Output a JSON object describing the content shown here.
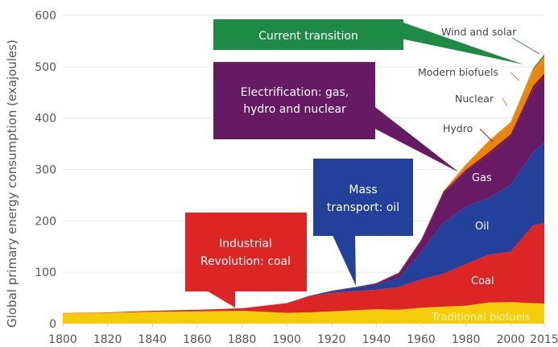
{
  "chart_data": {
    "type": "area",
    "stacked": true,
    "title": "",
    "xlabel": "",
    "ylabel": "Global primary energy consumption (exajoules)",
    "xlim": [
      1800,
      2015
    ],
    "ylim": [
      0,
      600
    ],
    "grid": true,
    "x_ticks": [
      "1800",
      "1820",
      "1840",
      "1860",
      "1880",
      "1900",
      "1920",
      "1940",
      "1960",
      "1980",
      "2000",
      "2015"
    ],
    "y_ticks": [
      "0",
      "100",
      "200",
      "300",
      "400",
      "500",
      "600"
    ],
    "x": [
      1800,
      1820,
      1840,
      1860,
      1880,
      1900,
      1910,
      1920,
      1930,
      1940,
      1950,
      1960,
      1970,
      1980,
      1990,
      2000,
      2010,
      2015
    ],
    "series": [
      {
        "name": "Traditional biofuels",
        "color": "#f5cc0a",
        "values": [
          20,
          21,
          23,
          24,
          25,
          21,
          22,
          24,
          26,
          28,
          27,
          31,
          33,
          35,
          41,
          42,
          40,
          39
        ]
      },
      {
        "name": "Coal",
        "color": "#dc2626",
        "values": [
          0.5,
          1,
          2,
          3,
          5,
          19,
          31,
          36,
          37,
          38,
          44,
          55,
          64,
          81,
          93,
          98,
          151,
          157
        ]
      },
      {
        "name": "Oil",
        "color": "#23409a",
        "values": [
          0,
          0,
          0,
          0,
          0,
          0,
          1,
          3,
          7,
          10,
          18,
          53,
          99,
          112,
          110,
          130,
          142,
          157
        ]
      },
      {
        "name": "Gas",
        "color": "#681a64",
        "values": [
          0,
          0,
          0,
          0,
          0,
          0,
          0,
          1,
          1,
          2,
          8,
          21,
          58,
          69,
          84,
          94,
          123,
          124
        ]
      },
      {
        "name": "Hydro",
        "color": "#8b1a1a",
        "values": [
          0,
          0,
          0,
          0,
          0,
          0,
          0,
          0,
          0,
          1,
          2,
          3,
          3,
          3,
          5,
          5,
          7,
          10
        ]
      },
      {
        "name": "Nuclear",
        "color": "#e8860f",
        "values": [
          0,
          0,
          0,
          0,
          0,
          0,
          0,
          0,
          0,
          0,
          0,
          0,
          1,
          10,
          20,
          21,
          27,
          25
        ]
      },
      {
        "name": "Modern biofuels",
        "color": "#e8860f",
        "values": [
          0,
          0,
          0,
          0,
          0,
          0,
          0,
          0,
          0,
          0,
          0,
          0,
          0,
          0,
          2,
          2,
          5,
          8
        ]
      },
      {
        "name": "Wind and solar",
        "color": "#1e9a4a",
        "values": [
          0,
          0,
          0,
          0,
          0,
          0,
          0,
          0,
          0,
          0,
          0,
          0,
          0,
          0,
          0,
          0.5,
          2,
          4
        ]
      }
    ],
    "annotations": [
      {
        "text": "Current transition",
        "color": "#1e8a45"
      },
      {
        "text_lines": [
          "Electrification: gas,",
          "hydro and nuclear"
        ],
        "color": "#651a63"
      },
      {
        "text_lines": [
          "Mass",
          "transport: oil"
        ],
        "color": "#23409a"
      },
      {
        "text_lines": [
          "Industrial",
          "Revolution: coal"
        ],
        "color": "#dc2626"
      }
    ]
  }
}
